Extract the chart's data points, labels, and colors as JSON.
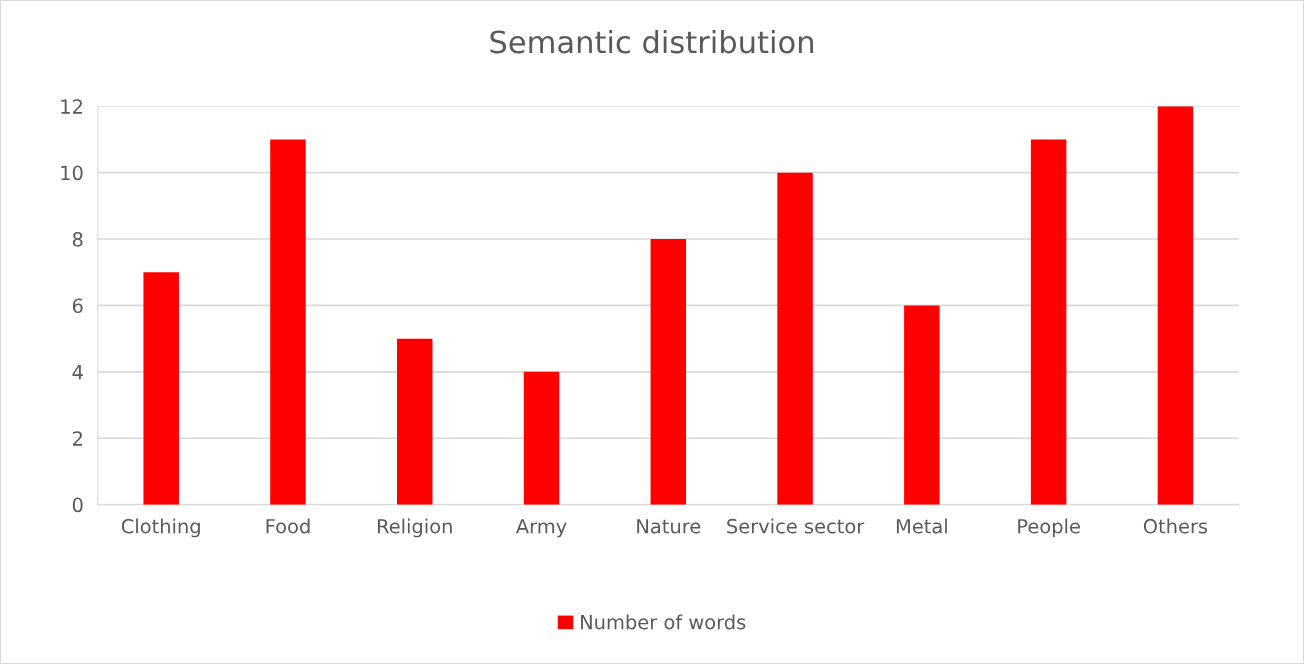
{
  "chart_data": {
    "type": "bar",
    "title": "Semantic distribution",
    "categories": [
      "Clothing",
      "Food",
      "Religion",
      "Army",
      "Nature",
      "Service sector",
      "Metal",
      "People",
      "Others"
    ],
    "series": [
      {
        "name": "Number of words",
        "color": "#ff0000",
        "values": [
          7,
          11,
          5,
          4,
          8,
          10,
          6,
          11,
          12
        ]
      }
    ],
    "ylim": [
      0,
      12
    ],
    "yticks": [
      0,
      2,
      4,
      6,
      8,
      10,
      12
    ],
    "grid": "y",
    "legend": "bottom"
  }
}
